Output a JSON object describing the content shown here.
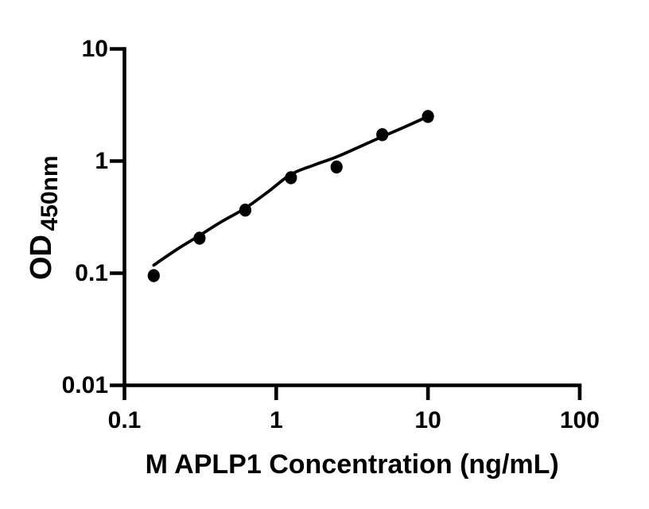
{
  "chart_data": {
    "type": "scatter",
    "title": "",
    "xlabel": "M APLP1 Concentration (ng/mL)",
    "ylabel": "OD450nm",
    "ylabel_main": "OD",
    "ylabel_sub": "450nm",
    "x_scale": "log",
    "y_scale": "log",
    "xlim": [
      0.1,
      100
    ],
    "ylim": [
      0.01,
      10
    ],
    "x_tick_values": [
      0.1,
      1,
      10,
      100
    ],
    "x_tick_labels": [
      "0.1",
      "1",
      "10",
      "100"
    ],
    "y_tick_values": [
      0.01,
      0.1,
      1,
      10
    ],
    "y_tick_labels": [
      "0.01",
      "0.1",
      "1",
      "10"
    ],
    "grid": false,
    "legend": "none",
    "axis_color": "#000000",
    "marker_color": "#000000",
    "line_color": "#000000",
    "background_color": "#ffffff",
    "series": [
      {
        "name": "standards",
        "type": "scatter",
        "marker": "filled-circle",
        "points": [
          {
            "x": 0.156,
            "y": 0.095
          },
          {
            "x": 0.3125,
            "y": 0.205
          },
          {
            "x": 0.625,
            "y": 0.365
          },
          {
            "x": 1.25,
            "y": 0.71
          },
          {
            "x": 2.5,
            "y": 0.885
          },
          {
            "x": 5,
            "y": 1.72
          },
          {
            "x": 10,
            "y": 2.5
          }
        ]
      },
      {
        "name": "fit-curve",
        "type": "line",
        "points": [
          {
            "x": 0.156,
            "y": 0.118
          },
          {
            "x": 0.22,
            "y": 0.162
          },
          {
            "x": 0.3125,
            "y": 0.217
          },
          {
            "x": 0.44,
            "y": 0.29
          },
          {
            "x": 0.625,
            "y": 0.38
          },
          {
            "x": 0.88,
            "y": 0.53
          },
          {
            "x": 1.25,
            "y": 0.76
          },
          {
            "x": 1.77,
            "y": 0.92
          },
          {
            "x": 2.5,
            "y": 1.09
          },
          {
            "x": 3.54,
            "y": 1.34
          },
          {
            "x": 5,
            "y": 1.65
          },
          {
            "x": 7.07,
            "y": 2.02
          },
          {
            "x": 10,
            "y": 2.5
          }
        ]
      }
    ]
  }
}
